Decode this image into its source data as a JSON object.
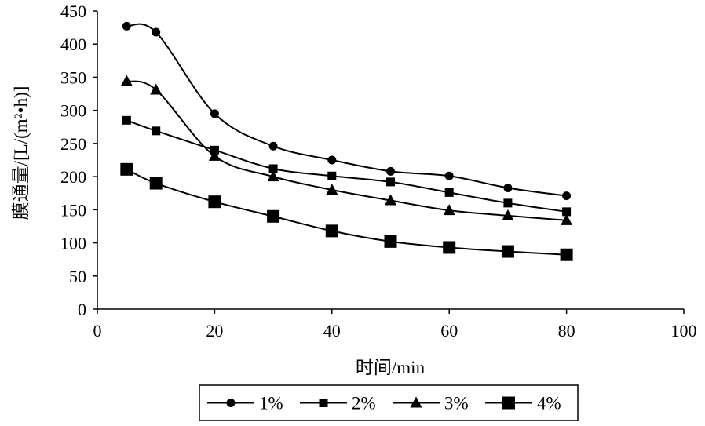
{
  "chart_data": {
    "type": "line",
    "title": "",
    "xlabel": "时间/min",
    "ylabel": "膜通量/[L/(m²•h)]",
    "xlim": [
      0,
      100
    ],
    "ylim": [
      0,
      450
    ],
    "xticks": [
      0,
      20,
      40,
      60,
      80,
      100
    ],
    "yticks": [
      0,
      50,
      100,
      150,
      200,
      250,
      300,
      350,
      400,
      450
    ],
    "grid": false,
    "legend_position": "bottom",
    "x": [
      5,
      10,
      20,
      30,
      40,
      50,
      60,
      70,
      80
    ],
    "series": [
      {
        "name": "1%",
        "marker": "circle",
        "values": [
          427,
          418,
          295,
          246,
          225,
          208,
          201,
          183,
          171
        ]
      },
      {
        "name": "2%",
        "marker": "square",
        "values": [
          285,
          269,
          240,
          212,
          201,
          192,
          176,
          160,
          147
        ]
      },
      {
        "name": "3%",
        "marker": "triangle",
        "values": [
          344,
          331,
          231,
          200,
          180,
          164,
          149,
          141,
          134
        ]
      },
      {
        "name": "4%",
        "marker": "big-square",
        "values": [
          211,
          190,
          162,
          140,
          118,
          102,
          93,
          87,
          82
        ]
      }
    ],
    "colors": {
      "line": "#000000",
      "background": "#ffffff"
    }
  }
}
